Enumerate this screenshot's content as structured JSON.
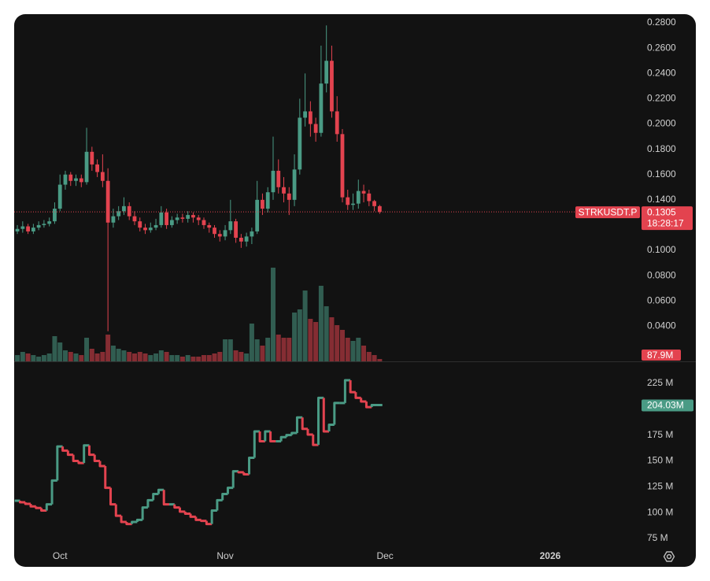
{
  "chart_data": [
    {
      "type": "candlestick",
      "symbol": "STRKUSDT.P",
      "last_label": "0.1305",
      "countdown": "18:28:17",
      "up_color": "#4a9b85",
      "down_color": "#e3434f",
      "open": [
        0.115,
        0.117,
        0.119,
        0.115,
        0.118,
        0.12,
        0.121,
        0.123,
        0.133,
        0.152,
        0.16,
        0.155,
        0.157,
        0.154,
        0.178,
        0.168,
        0.162,
        0.155,
        0.122,
        0.127,
        0.131,
        0.135,
        0.127,
        0.123,
        0.118,
        0.116,
        0.118,
        0.12,
        0.13,
        0.12,
        0.124,
        0.126,
        0.125,
        0.128,
        0.126,
        0.124,
        0.12,
        0.118,
        0.113,
        0.111,
        0.116,
        0.123,
        0.11,
        0.107,
        0.111,
        0.115,
        0.14,
        0.133,
        0.146,
        0.163,
        0.15,
        0.145,
        0.14,
        0.164,
        0.205,
        0.21,
        0.2,
        0.193,
        0.232,
        0.25,
        0.21,
        0.192,
        0.142,
        0.136,
        0.137,
        0.147,
        0.145,
        0.139,
        0.135
      ],
      "high": [
        0.12,
        0.123,
        0.121,
        0.121,
        0.123,
        0.124,
        0.126,
        0.138,
        0.16,
        0.163,
        0.162,
        0.16,
        0.16,
        0.197,
        0.182,
        0.172,
        0.176,
        0.165,
        0.133,
        0.135,
        0.142,
        0.138,
        0.131,
        0.126,
        0.121,
        0.122,
        0.125,
        0.135,
        0.133,
        0.127,
        0.129,
        0.129,
        0.131,
        0.13,
        0.128,
        0.126,
        0.122,
        0.12,
        0.116,
        0.12,
        0.14,
        0.125,
        0.113,
        0.114,
        0.118,
        0.155,
        0.145,
        0.15,
        0.19,
        0.172,
        0.158,
        0.15,
        0.176,
        0.22,
        0.24,
        0.218,
        0.205,
        0.262,
        0.278,
        0.262,
        0.222,
        0.196,
        0.148,
        0.145,
        0.156,
        0.152,
        0.148,
        0.14,
        0.136
      ],
      "low": [
        0.113,
        0.114,
        0.113,
        0.113,
        0.116,
        0.118,
        0.119,
        0.121,
        0.131,
        0.148,
        0.151,
        0.151,
        0.15,
        0.152,
        0.163,
        0.158,
        0.15,
        0.036,
        0.118,
        0.124,
        0.128,
        0.124,
        0.12,
        0.115,
        0.113,
        0.114,
        0.116,
        0.118,
        0.117,
        0.118,
        0.121,
        0.122,
        0.122,
        0.122,
        0.12,
        0.117,
        0.114,
        0.11,
        0.107,
        0.108,
        0.113,
        0.106,
        0.102,
        0.103,
        0.105,
        0.113,
        0.128,
        0.13,
        0.14,
        0.145,
        0.138,
        0.128,
        0.135,
        0.16,
        0.198,
        0.19,
        0.186,
        0.19,
        0.225,
        0.205,
        0.186,
        0.138,
        0.132,
        0.132,
        0.133,
        0.138,
        0.135,
        0.131,
        0.129
      ],
      "close": [
        0.117,
        0.119,
        0.115,
        0.118,
        0.12,
        0.121,
        0.123,
        0.133,
        0.152,
        0.16,
        0.155,
        0.157,
        0.154,
        0.178,
        0.168,
        0.162,
        0.155,
        0.122,
        0.127,
        0.131,
        0.135,
        0.127,
        0.123,
        0.118,
        0.116,
        0.118,
        0.12,
        0.13,
        0.12,
        0.124,
        0.126,
        0.125,
        0.128,
        0.126,
        0.124,
        0.12,
        0.118,
        0.113,
        0.111,
        0.116,
        0.123,
        0.11,
        0.107,
        0.111,
        0.115,
        0.14,
        0.133,
        0.146,
        0.163,
        0.15,
        0.145,
        0.14,
        0.164,
        0.205,
        0.21,
        0.2,
        0.193,
        0.232,
        0.25,
        0.21,
        0.192,
        0.142,
        0.136,
        0.137,
        0.147,
        0.145,
        0.139,
        0.135,
        0.1305
      ],
      "xlim": [
        -0.6,
        116.4
      ],
      "xticks": [
        {
          "value": 8,
          "label": "Oct"
        },
        {
          "value": 39,
          "label": "Nov"
        },
        {
          "value": 69,
          "label": "Dec"
        },
        {
          "value": 100,
          "label": "2026"
        }
      ],
      "ylim": [
        0.0122,
        0.2869
      ],
      "yticks": [
        {
          "value": 0.28,
          "label": "0.2800"
        },
        {
          "value": 0.26,
          "label": "0.2600"
        },
        {
          "value": 0.24,
          "label": "0.2400"
        },
        {
          "value": 0.22,
          "label": "0.2200"
        },
        {
          "value": 0.2,
          "label": "0.2000"
        },
        {
          "value": 0.18,
          "label": "0.1800"
        },
        {
          "value": 0.16,
          "label": "0.1600"
        },
        {
          "value": 0.14,
          "label": "0.1400"
        },
        {
          "value": 0.1,
          "label": "0.1000"
        },
        {
          "value": 0.08,
          "label": "0.0800"
        },
        {
          "value": 0.06,
          "label": "0.0600"
        },
        {
          "value": 0.04,
          "label": "0.0400"
        }
      ]
    },
    {
      "type": "bar",
      "last_label": "87.9M",
      "values": [
        234,
        352,
        293,
        234,
        176,
        234,
        293,
        938,
        703,
        410,
        352,
        293,
        234,
        879,
        469,
        293,
        352,
        996,
        586,
        469,
        410,
        352,
        293,
        352,
        293,
        234,
        293,
        410,
        352,
        234,
        234,
        176,
        234,
        176,
        176,
        234,
        234,
        293,
        352,
        820,
        820,
        410,
        352,
        293,
        1406,
        820,
        586,
        879,
        3487,
        996,
        879,
        879,
        1817,
        1934,
        2637,
        1582,
        1465,
        2813,
        2051,
        1641,
        1348,
        1172,
        879,
        762,
        879,
        586,
        352,
        234,
        87.9
      ]
    },
    {
      "type": "step",
      "last_label": "204.03M",
      "values": [
        111.5,
        110,
        108.5,
        106,
        104.5,
        102,
        108,
        131,
        164,
        160,
        156,
        150,
        148,
        165,
        156,
        150,
        145,
        124,
        108,
        97,
        91,
        89,
        91,
        93,
        105,
        112,
        118,
        122,
        108,
        108,
        105,
        101,
        99,
        96,
        93,
        92,
        89,
        102,
        112,
        118,
        124,
        140,
        139,
        137,
        153,
        178.5,
        169,
        178.5,
        169,
        169,
        173,
        175,
        177,
        192,
        181,
        175.5,
        165.5,
        211,
        178.5,
        185,
        206,
        206,
        228,
        216.5,
        211,
        207.5,
        202,
        204,
        204.03
      ],
      "ylim": [
        66.6,
        246.3
      ],
      "yticks": [
        {
          "value": 225,
          "label": "225 M"
        },
        {
          "value": 175,
          "label": "175 M"
        },
        {
          "value": 150,
          "label": "150 M"
        },
        {
          "value": 125,
          "label": "125 M"
        },
        {
          "value": 100,
          "label": "100 M"
        },
        {
          "value": 75,
          "label": "75 M"
        }
      ]
    }
  ]
}
